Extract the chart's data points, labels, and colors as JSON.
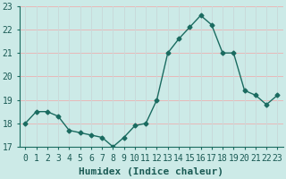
{
  "xlabel": "Humidex (Indice chaleur)",
  "x": [
    0,
    1,
    2,
    3,
    4,
    5,
    6,
    7,
    8,
    9,
    10,
    11,
    12,
    13,
    14,
    15,
    16,
    17,
    18,
    19,
    20,
    21,
    22,
    23
  ],
  "y": [
    18.0,
    18.5,
    18.5,
    18.3,
    17.7,
    17.6,
    17.5,
    17.4,
    17.0,
    17.4,
    17.9,
    18.0,
    19.0,
    21.0,
    21.6,
    22.1,
    22.6,
    22.2,
    21.0,
    21.0,
    19.4,
    19.2,
    18.8,
    19.2
  ],
  "line_color": "#1a6b60",
  "bg_color": "#cceae7",
  "grid_color_h": "#e8b8b8",
  "grid_color_v": "#c8dada",
  "axis_color": "#1a6b60",
  "tick_label_color": "#1a5a54",
  "ylim": [
    17,
    23
  ],
  "yticks": [
    17,
    18,
    19,
    20,
    21,
    22,
    23
  ],
  "xlabel_fontsize": 8,
  "tick_fontsize": 7,
  "marker": "D",
  "marker_size": 2.5
}
